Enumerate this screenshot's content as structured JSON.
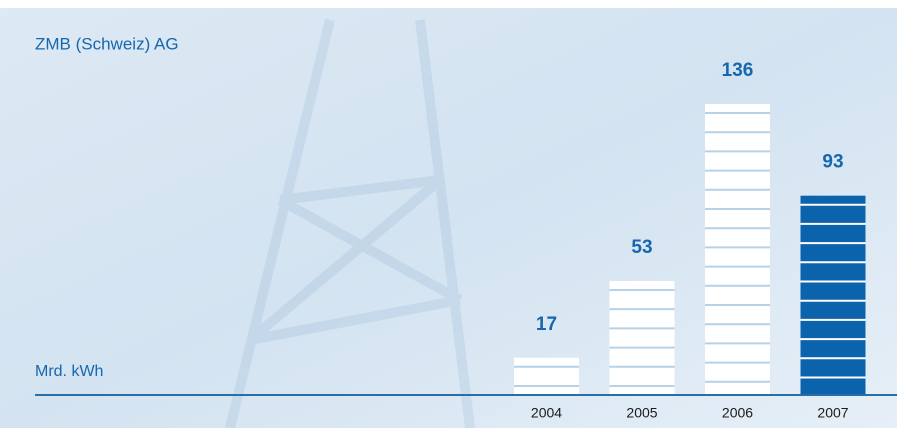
{
  "chart_data": {
    "type": "bar",
    "title": "ZMB (Schweiz) AG",
    "unit_label": "Mrd. kWh",
    "categories": [
      "2004",
      "2005",
      "2006",
      "2007"
    ],
    "values": [
      17,
      53,
      136,
      93
    ],
    "colors": [
      "#ffffff",
      "#ffffff",
      "#ffffff",
      "#0a63ab"
    ]
  }
}
